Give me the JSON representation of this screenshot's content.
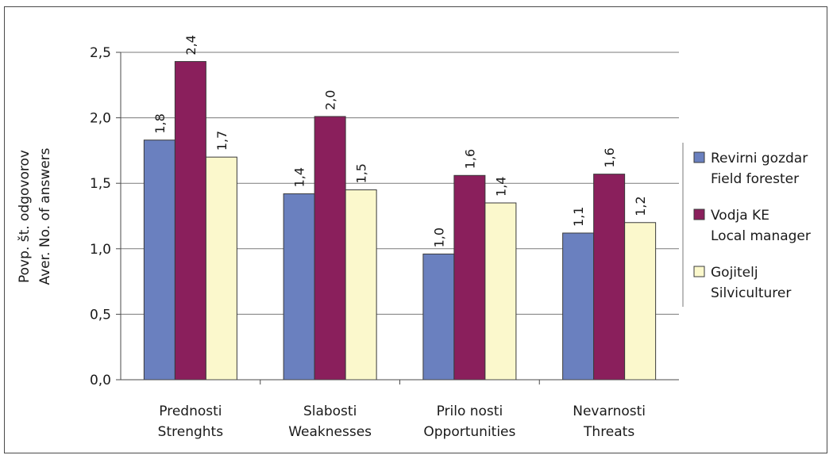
{
  "chart_data": {
    "type": "bar",
    "title": "",
    "ylabel": [
      "Povp. št. odgovorov",
      "Aver. No. of answers"
    ],
    "ylim": [
      0,
      2.5
    ],
    "yticks": [
      "0,0",
      "0,5",
      "1,0",
      "1,5",
      "2,0",
      "2,5"
    ],
    "grid": true,
    "legend_position": "right",
    "categories": [
      [
        "Prednosti",
        "Strenghts"
      ],
      [
        "Slabosti",
        "Weaknesses"
      ],
      [
        "Prilo nosti",
        "Opportunities"
      ],
      [
        "Nevarnosti",
        "Threats"
      ]
    ],
    "series": [
      {
        "name": [
          "Revirni gozdar",
          "Field forester"
        ],
        "color": "#6a80bf",
        "values": [
          1.83,
          1.42,
          0.96,
          1.12
        ],
        "labels": [
          "1,8",
          "1,4",
          "1,0",
          "1,1"
        ]
      },
      {
        "name": [
          "Vodja KE",
          "Local manager"
        ],
        "color": "#8a1f5c",
        "values": [
          2.43,
          2.01,
          1.56,
          1.57
        ],
        "labels": [
          "2,4",
          "2,0",
          "1,6",
          "1,6"
        ]
      },
      {
        "name": [
          "Gojitelj",
          "Silviculturer"
        ],
        "color": "#fbf8cc",
        "values": [
          1.7,
          1.45,
          1.35,
          1.2
        ],
        "labels": [
          "1,7",
          "1,5",
          "1,4",
          "1,2"
        ]
      }
    ]
  }
}
